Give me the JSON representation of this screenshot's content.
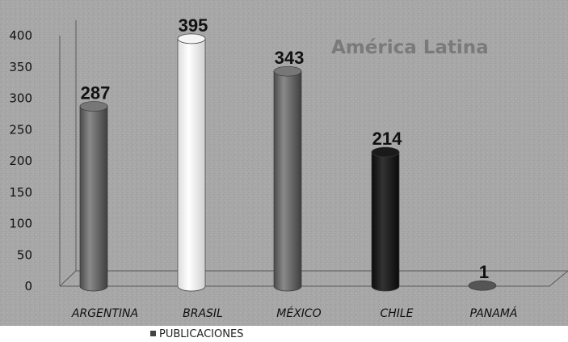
{
  "chart_data": {
    "type": "bar",
    "title": "América Latina",
    "categories": [
      "ARGENTINA",
      "BRASIL",
      "MÉXICO",
      "CHILE",
      "PANAMÁ"
    ],
    "series": [
      {
        "name": "PUBLICACIONES",
        "values": [
          287,
          395,
          343,
          214,
          1
        ]
      }
    ],
    "data_labels": [
      "287",
      "395",
      "343",
      "214",
      "1"
    ],
    "ylim": [
      0,
      400
    ],
    "yticks": [
      "0",
      "50",
      "100",
      "150",
      "200",
      "250",
      "300",
      "350",
      "400"
    ],
    "grid": false,
    "legend_position": "bottom-left",
    "colors": {
      "plot_background": "#a9a9a9",
      "bars": [
        "#6f6f6f",
        "#f2f2f2",
        "#6c6c6c",
        "#161616",
        "#4a4a4a"
      ]
    }
  }
}
